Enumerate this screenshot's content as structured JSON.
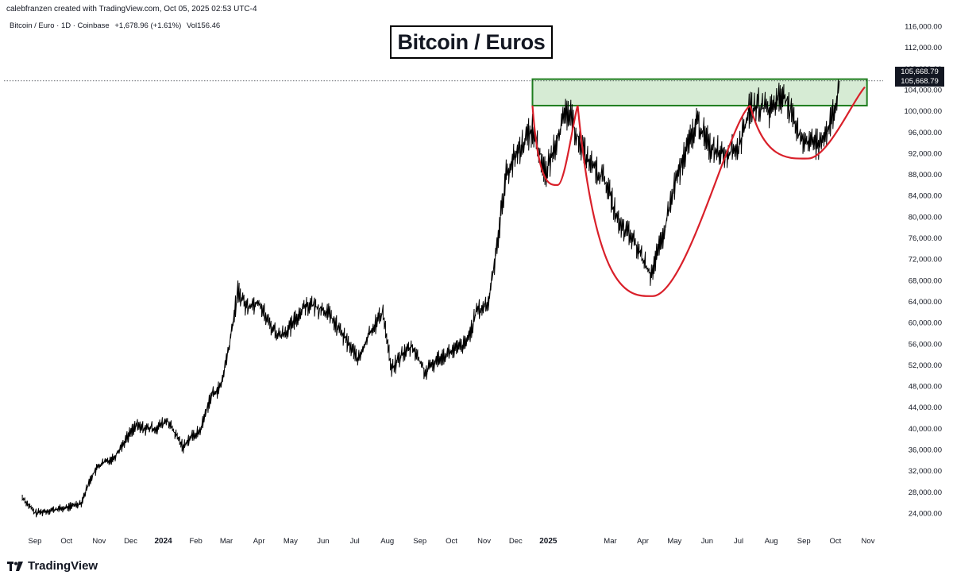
{
  "header": {
    "credit": "calebfranzen created with TradingView.com, Oct 05, 2025 02:53 UTC-4"
  },
  "legend": {
    "symbol": "Bitcoin / Euro · 1D · Coinbase",
    "change": "+1,678.96 (+1.61%)",
    "volume": "Vol156.46"
  },
  "title": "Bitcoin / Euros",
  "price_tags": [
    "105,668.79",
    "105,668.79"
  ],
  "brand": "TradingView",
  "colors": {
    "price_line": "#000000",
    "pattern_curve": "#d9202a",
    "zone_fill": "#cfe8cc",
    "zone_border": "#1e7d1e"
  },
  "chart_data": {
    "type": "line",
    "title": "Bitcoin / Euros",
    "xlabel": "",
    "ylabel": "",
    "ylim": [
      20000,
      118000
    ],
    "x_tick_labels": [
      "Sep",
      "Oct",
      "Nov",
      "Dec",
      "2024",
      "Feb",
      "Mar",
      "Apr",
      "May",
      "Jun",
      "Jul",
      "Aug",
      "Sep",
      "Oct",
      "Nov",
      "Dec",
      "2025",
      "Mar",
      "Apr",
      "May",
      "Jun",
      "Jul",
      "Aug",
      "Sep",
      "Oct",
      "Nov"
    ],
    "y_tick_labels": [
      "116,000.00",
      "112,000.00",
      "108,000.00",
      "104,000.00",
      "100,000.00",
      "96,000.00",
      "92,000.00",
      "88,000.00",
      "84,000.00",
      "80,000.00",
      "76,000.00",
      "72,000.00",
      "68,000.00",
      "64,000.00",
      "60,000.00",
      "56,000.00",
      "52,000.00",
      "48,000.00",
      "44,000.00",
      "40,000.00",
      "36,000.00",
      "32,000.00",
      "28,000.00",
      "24,000.00"
    ],
    "y_ticks": [
      116000,
      112000,
      108000,
      104000,
      100000,
      96000,
      92000,
      88000,
      84000,
      80000,
      76000,
      72000,
      68000,
      64000,
      60000,
      56000,
      52000,
      48000,
      44000,
      40000,
      36000,
      32000,
      28000,
      24000
    ],
    "last_price": 105668.79,
    "resistance_zone": {
      "from": 101000,
      "to": 106000,
      "x_start": "2024-12-17",
      "x_end": "2025-10-31"
    },
    "series": [
      {
        "x": [
          "2023-08-20",
          "2023-09-01",
          "2023-09-15",
          "2023-10-01",
          "2023-10-15",
          "2023-10-25",
          "2023-11-01",
          "2023-11-15",
          "2023-11-25",
          "2023-12-05",
          "2023-12-15",
          "2023-12-25",
          "2024-01-05",
          "2024-01-12",
          "2024-01-20",
          "2024-01-25",
          "2024-02-05",
          "2024-02-15",
          "2024-02-25",
          "2024-03-05",
          "2024-03-12",
          "2024-03-20",
          "2024-04-01",
          "2024-04-10",
          "2024-04-20",
          "2024-05-01",
          "2024-05-15",
          "2024-05-25",
          "2024-06-05",
          "2024-06-15",
          "2024-06-25",
          "2024-07-05",
          "2024-07-15",
          "2024-07-28",
          "2024-08-05",
          "2024-08-15",
          "2024-08-25",
          "2024-09-06",
          "2024-09-20",
          "2024-10-01",
          "2024-10-15",
          "2024-10-25",
          "2024-11-05",
          "2024-11-12",
          "2024-11-22",
          "2024-12-05",
          "2024-12-17",
          "2024-12-30",
          "2025-01-10",
          "2025-01-20",
          "2025-01-31",
          "2025-02-10",
          "2025-02-25",
          "2025-03-10",
          "2025-03-20",
          "2025-04-01",
          "2025-04-08",
          "2025-04-20",
          "2025-05-01",
          "2025-05-10",
          "2025-05-22",
          "2025-06-05",
          "2025-06-20",
          "2025-07-01",
          "2025-07-11",
          "2025-07-20",
          "2025-07-30",
          "2025-08-13",
          "2025-08-25",
          "2025-09-05",
          "2025-09-15",
          "2025-09-25",
          "2025-10-01",
          "2025-10-05"
        ],
        "y": [
          27000,
          24000,
          24500,
          25000,
          26000,
          31000,
          33000,
          34500,
          37500,
          40500,
          40000,
          40000,
          41500,
          39000,
          36500,
          38000,
          39500,
          46000,
          48000,
          57000,
          66000,
          63000,
          64000,
          60000,
          57500,
          59000,
          63500,
          63000,
          62000,
          59000,
          56000,
          53000,
          58000,
          62000,
          51000,
          54000,
          55500,
          50500,
          53500,
          54500,
          56000,
          62000,
          63500,
          73000,
          88000,
          93000,
          96500,
          88000,
          95500,
          100000,
          94000,
          90000,
          86500,
          78000,
          76500,
          72000,
          69000,
          76000,
          86000,
          91000,
          98000,
          93000,
          92000,
          93000,
          100000,
          101000,
          100000,
          103500,
          96000,
          94000,
          94000,
          97000,
          100000,
          105668.79
        ]
      }
    ],
    "pattern_annotations": [
      {
        "name": "small cup",
        "left_date": "2024-12-17",
        "bottom_date": "2025-01-10",
        "bottom_value": 86000,
        "right_date": "2025-01-29"
      },
      {
        "name": "large cup",
        "left_date": "2025-01-29",
        "bottom_date": "2025-04-10",
        "bottom_value": 65000,
        "right_date": "2025-07-12"
      },
      {
        "name": "handle",
        "left_date": "2025-07-12",
        "bottom_date": "2025-09-05",
        "bottom_value": 91000,
        "right_date": "2025-10-29"
      }
    ]
  }
}
